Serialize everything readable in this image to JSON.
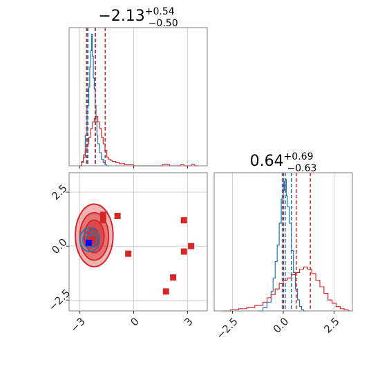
{
  "colors": {
    "red": "#d62728",
    "blue": "#1f77b4",
    "grid": "#d0d0d0",
    "frame": "#7f7f7f"
  },
  "titles": [
    {
      "id": "p1",
      "main": "−2.13",
      "sup": "+0.54",
      "sub": "−0.50"
    },
    {
      "id": "p2",
      "main": "0.64",
      "sup": "+0.69",
      "sub": "−0.63"
    }
  ],
  "chart_data": {
    "type": "corner",
    "parameters": [
      "p1",
      "p2"
    ],
    "panels": [
      {
        "id": "hist-p1",
        "type": "histogram",
        "xlim": [
          -3.6,
          4.1
        ],
        "x_ticks": [
          -3,
          0,
          3
        ],
        "series": [
          {
            "name": "",
            "color": "#1f77b4",
            "bins": [
              [
                -3.0,
                0
              ],
              [
                -2.9,
                3
              ],
              [
                -2.8,
                10
              ],
              [
                -2.7,
                28
              ],
              [
                -2.6,
                55
              ],
              [
                -2.5,
                72
              ],
              [
                -2.45,
                90
              ],
              [
                -2.4,
                105
              ],
              [
                -2.35,
                120
              ],
              [
                -2.3,
                100
              ],
              [
                -2.25,
                80
              ],
              [
                -2.2,
                70
              ],
              [
                -2.15,
                55
              ],
              [
                -2.1,
                40
              ],
              [
                -2.05,
                28
              ],
              [
                -2.0,
                20
              ],
              [
                -1.9,
                12
              ],
              [
                -1.8,
                6
              ],
              [
                -1.7,
                3
              ],
              [
                -1.6,
                1
              ],
              [
                -1.5,
                0
              ]
            ],
            "quantiles": [
              -2.6,
              -2.15,
              -2.55
            ]
          },
          {
            "name": "",
            "color": "#d62728",
            "bins": [
              [
                -3.0,
                0
              ],
              [
                -2.9,
                4
              ],
              [
                -2.8,
                8
              ],
              [
                -2.7,
                14
              ],
              [
                -2.6,
                20
              ],
              [
                -2.5,
                26
              ],
              [
                -2.4,
                34
              ],
              [
                -2.3,
                40
              ],
              [
                -2.2,
                43
              ],
              [
                -2.1,
                45
              ],
              [
                -2.0,
                40
              ],
              [
                -1.9,
                34
              ],
              [
                -1.8,
                26
              ],
              [
                -1.7,
                20
              ],
              [
                -1.6,
                14
              ],
              [
                -1.5,
                8
              ],
              [
                -1.4,
                6
              ],
              [
                -1.3,
                5
              ],
              [
                -1.2,
                4
              ],
              [
                -1.0,
                3
              ],
              [
                -0.8,
                2
              ],
              [
                -0.5,
                1
              ],
              [
                0,
                0
              ],
              [
                1.6,
                1
              ],
              [
                2.0,
                0
              ],
              [
                2.6,
                1
              ],
              [
                2.8,
                0
              ],
              [
                3.2,
                1
              ],
              [
                3.4,
                0
              ]
            ],
            "quantiles": [
              -2.63,
              -2.13,
              -1.59
            ]
          }
        ]
      },
      {
        "id": "hist-p2",
        "type": "histogram",
        "xlim": [
          -3.4,
          3.4
        ],
        "x_ticks": [
          -2.5,
          0.0,
          2.5
        ],
        "x_tick_labels": [
          "−2.5",
          "0.0",
          "2.5"
        ],
        "series": [
          {
            "name": "",
            "color": "#1f77b4",
            "bins": [
              [
                -1.2,
                0
              ],
              [
                -1.0,
                3
              ],
              [
                -0.8,
                8
              ],
              [
                -0.6,
                18
              ],
              [
                -0.5,
                30
              ],
              [
                -0.4,
                45
              ],
              [
                -0.3,
                60
              ],
              [
                -0.2,
                80
              ],
              [
                -0.1,
                102
              ],
              [
                0.0,
                118
              ],
              [
                0.05,
                110
              ],
              [
                0.1,
                120
              ],
              [
                0.15,
                105
              ],
              [
                0.2,
                95
              ],
              [
                0.3,
                80
              ],
              [
                0.4,
                55
              ],
              [
                0.5,
                35
              ],
              [
                0.6,
                20
              ],
              [
                0.7,
                10
              ],
              [
                0.8,
                4
              ],
              [
                0.9,
                1
              ],
              [
                1.0,
                0
              ]
            ],
            "quantiles": [
              -0.05,
              0.1,
              0.4
            ]
          },
          {
            "name": "",
            "color": "#d62728",
            "bins": [
              [
                -3.0,
                0
              ],
              [
                -2.6,
                1
              ],
              [
                -2.2,
                2
              ],
              [
                -1.8,
                3
              ],
              [
                -1.4,
                5
              ],
              [
                -1.0,
                8
              ],
              [
                -0.8,
                12
              ],
              [
                -0.6,
                15
              ],
              [
                -0.4,
                20
              ],
              [
                -0.2,
                25
              ],
              [
                0.0,
                28
              ],
              [
                0.2,
                30
              ],
              [
                0.4,
                33
              ],
              [
                0.6,
                35
              ],
              [
                0.8,
                38
              ],
              [
                1.0,
                40
              ],
              [
                1.2,
                38
              ],
              [
                1.4,
                34
              ],
              [
                1.6,
                28
              ],
              [
                1.8,
                22
              ],
              [
                2.0,
                16
              ],
              [
                2.2,
                10
              ],
              [
                2.4,
                7
              ],
              [
                2.6,
                4
              ],
              [
                2.8,
                2
              ],
              [
                3.0,
                1
              ],
              [
                3.2,
                0
              ]
            ],
            "quantiles": [
              0.01,
              0.64,
              1.33
            ]
          }
        ]
      },
      {
        "id": "scatter-p1-p2",
        "type": "contour-scatter",
        "xlim": [
          -3.6,
          4.1
        ],
        "ylim": [
          -3.0,
          3.4
        ],
        "x_ticks": [
          -3,
          0,
          3
        ],
        "y_ticks": [
          -2.5,
          0.0,
          2.5
        ],
        "y_tick_labels": [
          "−2.5",
          "0.0",
          "2.5"
        ],
        "contours_red": [
          {
            "cx": -2.2,
            "cy": 0.5,
            "rx": 1.05,
            "ry": 1.45,
            "fill_opacity": 0.35
          },
          {
            "cx": -2.2,
            "cy": 0.45,
            "rx": 0.8,
            "ry": 1.1,
            "fill_opacity": 0.45
          },
          {
            "cx": -2.2,
            "cy": 0.45,
            "rx": 0.55,
            "ry": 0.75,
            "fill_opacity": 0.55
          },
          {
            "cx": -2.25,
            "cy": 0.4,
            "rx": 0.32,
            "ry": 0.42,
            "fill_opacity": 0.7
          }
        ],
        "contours_blue": [
          {
            "cx": -2.45,
            "cy": 0.3,
            "rx": 0.55,
            "ry": 0.55
          },
          {
            "cx": -2.45,
            "cy": 0.3,
            "rx": 0.38,
            "ry": 0.38
          },
          {
            "cx": -2.45,
            "cy": 0.3,
            "rx": 0.2,
            "ry": 0.22
          }
        ],
        "red_squares": [
          [
            -1.7,
            1.45
          ],
          [
            -1.7,
            1.2
          ],
          [
            -0.9,
            1.4
          ],
          [
            -2.3,
            0.3
          ],
          [
            -0.3,
            -0.35
          ],
          [
            2.8,
            1.2
          ],
          [
            3.2,
            0.0
          ],
          [
            2.8,
            -0.25
          ],
          [
            2.2,
            -1.45
          ],
          [
            1.8,
            -2.1
          ]
        ],
        "blue_squares": [
          [
            -2.5,
            0.15
          ]
        ]
      }
    ]
  }
}
